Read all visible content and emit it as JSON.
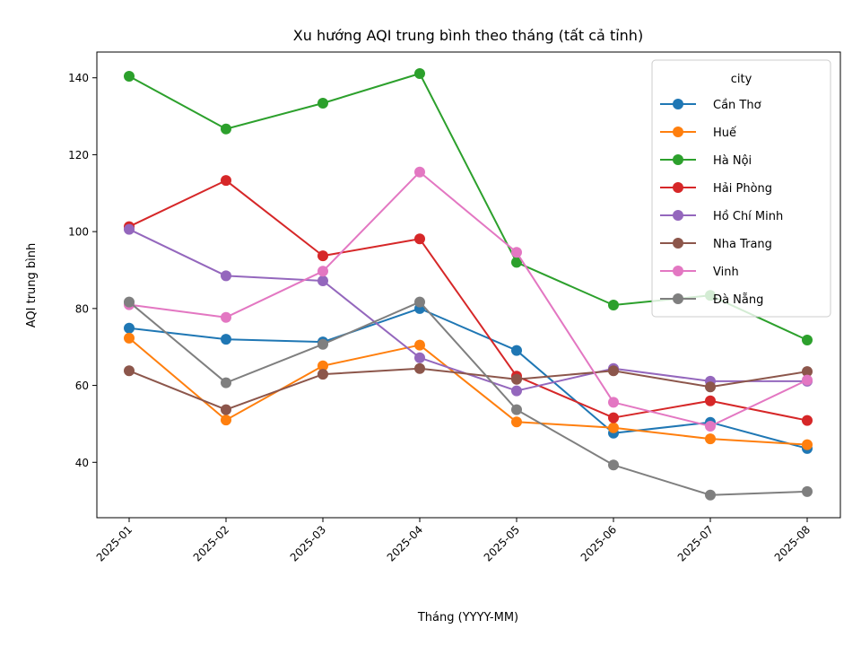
{
  "chart_data": {
    "type": "line",
    "title": "Xu hướng AQI trung bình theo tháng (tất cả tỉnh)",
    "xlabel": "Tháng (YYYY-MM)",
    "ylabel": "AQI trung bình",
    "categories": [
      "2025-01",
      "2025-02",
      "2025-03",
      "2025-04",
      "2025-05",
      "2025-06",
      "2025-07",
      "2025-08"
    ],
    "ylim": [
      25.6,
      146.7
    ],
    "yticks": [
      40,
      60,
      80,
      100,
      120,
      140
    ],
    "grid": false,
    "legend": {
      "title": "city",
      "placement": "top-right"
    },
    "series": [
      {
        "name": "Cần Thơ",
        "color": "#1f77b4",
        "values": [
          74.9,
          72.0,
          71.3,
          80.0,
          69.1,
          47.6,
          50.4,
          43.6
        ]
      },
      {
        "name": "Huế",
        "color": "#ff7f0e",
        "values": [
          72.3,
          51.0,
          65.1,
          70.5,
          50.5,
          49.0,
          46.1,
          44.6
        ]
      },
      {
        "name": "Hà Nội",
        "color": "#2ca02c",
        "values": [
          140.4,
          126.7,
          133.4,
          141.1,
          92.0,
          80.9,
          83.4,
          71.8
        ]
      },
      {
        "name": "Hải Phòng",
        "color": "#d62728",
        "values": [
          101.3,
          113.3,
          93.7,
          98.1,
          62.4,
          51.6,
          56.0,
          50.9
        ]
      },
      {
        "name": "Hồ Chí Minh",
        "color": "#9467bd",
        "values": [
          100.6,
          88.5,
          87.2,
          67.2,
          58.6,
          64.4,
          61.1,
          61.1
        ]
      },
      {
        "name": "Nha Trang",
        "color": "#8c564b",
        "values": [
          63.8,
          53.7,
          62.9,
          64.4,
          61.6,
          63.8,
          59.6,
          63.6
        ]
      },
      {
        "name": "Vinh",
        "color": "#e377c2",
        "values": [
          81.0,
          77.7,
          89.7,
          115.5,
          94.6,
          55.6,
          49.4,
          61.4
        ]
      },
      {
        "name": "Đà Nẵng",
        "color": "#7f7f7f",
        "values": [
          81.7,
          60.7,
          70.7,
          81.7,
          53.7,
          39.3,
          31.5,
          32.4
        ]
      }
    ]
  }
}
